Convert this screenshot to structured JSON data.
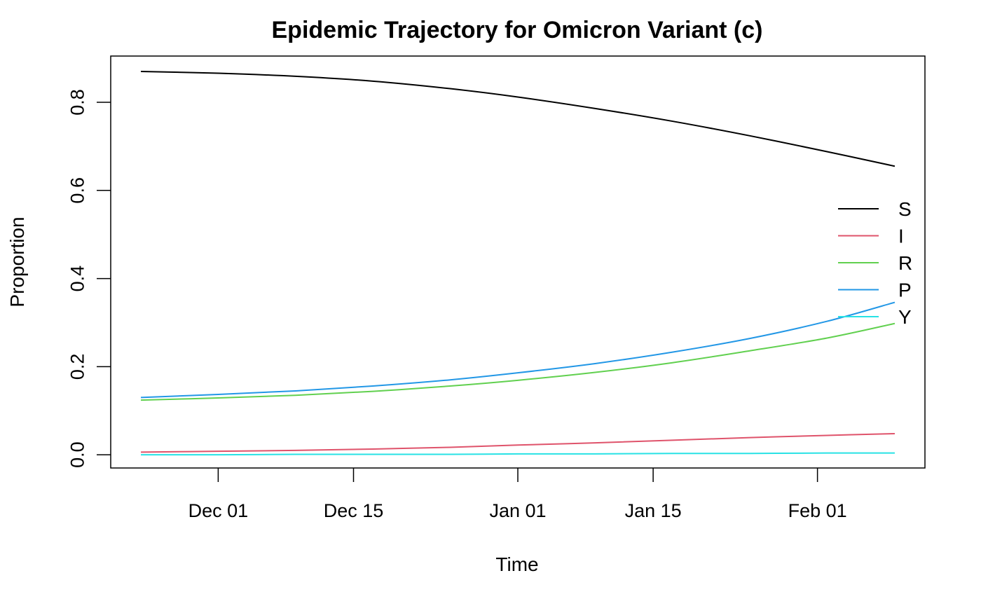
{
  "chart_data": {
    "type": "line",
    "title": "Epidemic Trajectory for Omicron Variant (c)",
    "xlabel": "Time",
    "ylabel": "Proportion",
    "x_start": "2021-11-23",
    "x_end": "2022-02-09",
    "x_ticks": [
      {
        "date": "2021-12-01",
        "label": "Dec 01"
      },
      {
        "date": "2021-12-15",
        "label": "Dec 15"
      },
      {
        "date": "2022-01-01",
        "label": "Jan 01"
      },
      {
        "date": "2022-01-15",
        "label": "Jan 15"
      },
      {
        "date": "2022-02-01",
        "label": "Feb 01"
      }
    ],
    "ylim": [
      -0.03,
      0.905
    ],
    "y_ticks": [
      {
        "value": 0.0,
        "label": "0.0"
      },
      {
        "value": 0.2,
        "label": "0.2"
      },
      {
        "value": 0.4,
        "label": "0.4"
      },
      {
        "value": 0.6,
        "label": "0.6"
      },
      {
        "value": 0.8,
        "label": "0.8"
      }
    ],
    "grid": false,
    "legend_position": "right",
    "x": [
      "2021-11-23",
      "2021-12-01",
      "2021-12-09",
      "2021-12-17",
      "2021-12-25",
      "2022-01-01",
      "2022-01-09",
      "2022-01-17",
      "2022-01-25",
      "2022-02-02",
      "2022-02-09"
    ],
    "series": [
      {
        "name": "S",
        "color": "#000000",
        "values": [
          0.87,
          0.866,
          0.859,
          0.848,
          0.831,
          0.812,
          0.786,
          0.757,
          0.724,
          0.688,
          0.655
        ]
      },
      {
        "name": "I",
        "color": "#DF536B",
        "values": [
          0.006,
          0.008,
          0.01,
          0.013,
          0.017,
          0.022,
          0.027,
          0.033,
          0.039,
          0.044,
          0.048
        ]
      },
      {
        "name": "R",
        "color": "#61D04F",
        "values": [
          0.124,
          0.129,
          0.135,
          0.144,
          0.156,
          0.169,
          0.187,
          0.209,
          0.236,
          0.265,
          0.298
        ]
      },
      {
        "name": "P",
        "color": "#2297E6",
        "values": [
          0.13,
          0.137,
          0.145,
          0.156,
          0.17,
          0.186,
          0.207,
          0.233,
          0.264,
          0.303,
          0.346
        ]
      },
      {
        "name": "Y",
        "color": "#28E2E5",
        "values": [
          0.0,
          0.0,
          0.001,
          0.001,
          0.001,
          0.002,
          0.002,
          0.003,
          0.003,
          0.004,
          0.004
        ]
      }
    ]
  }
}
